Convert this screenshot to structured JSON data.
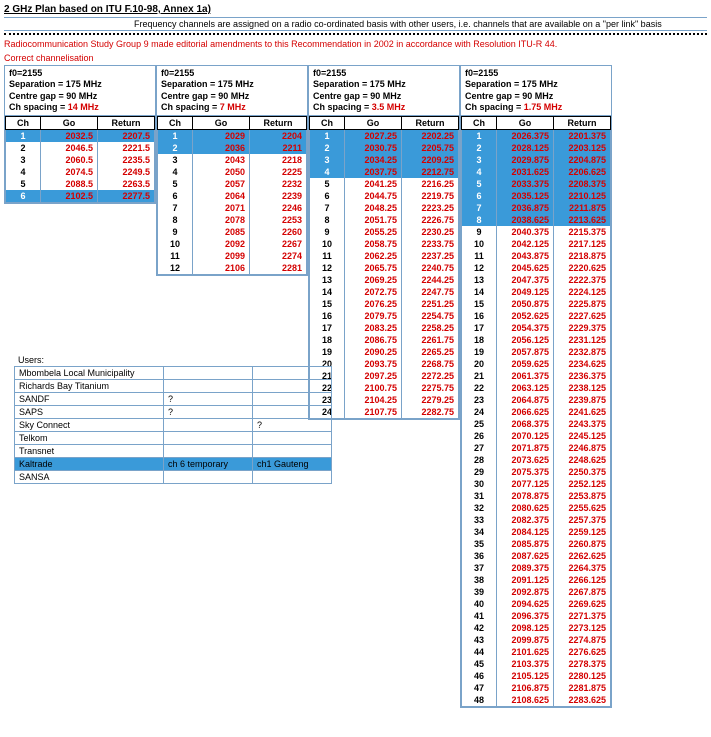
{
  "title": "2 GHz Plan based on ITU F.10-98, Annex 1a)",
  "subtitle": "Frequency channels are assigned on a radio co-ordinated basis with other users, i.e. channels that are available on a \"per link\" basis",
  "red_note": "Radiocommunication Study Group 9 made editorial amendments to this Recommendation in 2002 in accordance with Resolution ITU-R 44.",
  "correct_label": "Correct channelisation",
  "header": {
    "f0": "f0=2155",
    "sep": "Separation = 175 MHz",
    "gap": "Centre gap =  90 MHz",
    "spacing_prefix": "Ch spacing = "
  },
  "th": {
    "ch": "Ch",
    "go": "Go",
    "ret": "Return"
  },
  "cols": [
    {
      "spacing": "14 MHz",
      "highlight": [
        1,
        6
      ],
      "rows": [
        [
          1,
          "2032.5",
          "2207.5"
        ],
        [
          2,
          "2046.5",
          "2221.5"
        ],
        [
          3,
          "2060.5",
          "2235.5"
        ],
        [
          4,
          "2074.5",
          "2249.5"
        ],
        [
          5,
          "2088.5",
          "2263.5"
        ],
        [
          6,
          "2102.5",
          "2277.5"
        ]
      ]
    },
    {
      "spacing": "7 MHz",
      "highlight": [
        1,
        2
      ],
      "rows": [
        [
          1,
          "2029",
          "2204"
        ],
        [
          2,
          "2036",
          "2211"
        ],
        [
          3,
          "2043",
          "2218"
        ],
        [
          4,
          "2050",
          "2225"
        ],
        [
          5,
          "2057",
          "2232"
        ],
        [
          6,
          "2064",
          "2239"
        ],
        [
          7,
          "2071",
          "2246"
        ],
        [
          8,
          "2078",
          "2253"
        ],
        [
          9,
          "2085",
          "2260"
        ],
        [
          10,
          "2092",
          "2267"
        ],
        [
          11,
          "2099",
          "2274"
        ],
        [
          12,
          "2106",
          "2281"
        ]
      ]
    },
    {
      "spacing": "3.5 MHz",
      "highlight": [
        1,
        2,
        3,
        4
      ],
      "rows": [
        [
          1,
          "2027.25",
          "2202.25"
        ],
        [
          2,
          "2030.75",
          "2205.75"
        ],
        [
          3,
          "2034.25",
          "2209.25"
        ],
        [
          4,
          "2037.75",
          "2212.75"
        ],
        [
          5,
          "2041.25",
          "2216.25"
        ],
        [
          6,
          "2044.75",
          "2219.75"
        ],
        [
          7,
          "2048.25",
          "2223.25"
        ],
        [
          8,
          "2051.75",
          "2226.75"
        ],
        [
          9,
          "2055.25",
          "2230.25"
        ],
        [
          10,
          "2058.75",
          "2233.75"
        ],
        [
          11,
          "2062.25",
          "2237.25"
        ],
        [
          12,
          "2065.75",
          "2240.75"
        ],
        [
          13,
          "2069.25",
          "2244.25"
        ],
        [
          14,
          "2072.75",
          "2247.75"
        ],
        [
          15,
          "2076.25",
          "2251.25"
        ],
        [
          16,
          "2079.75",
          "2254.75"
        ],
        [
          17,
          "2083.25",
          "2258.25"
        ],
        [
          18,
          "2086.75",
          "2261.75"
        ],
        [
          19,
          "2090.25",
          "2265.25"
        ],
        [
          20,
          "2093.75",
          "2268.75"
        ],
        [
          21,
          "2097.25",
          "2272.25"
        ],
        [
          22,
          "2100.75",
          "2275.75"
        ],
        [
          23,
          "2104.25",
          "2279.25"
        ],
        [
          24,
          "2107.75",
          "2282.75"
        ]
      ]
    },
    {
      "spacing": "1.75 MHz",
      "highlight": [
        1,
        2,
        3,
        4,
        5,
        6,
        7,
        8
      ],
      "rows": [
        [
          1,
          "2026.375",
          "2201.375"
        ],
        [
          2,
          "2028.125",
          "2203.125"
        ],
        [
          3,
          "2029.875",
          "2204.875"
        ],
        [
          4,
          "2031.625",
          "2206.625"
        ],
        [
          5,
          "2033.375",
          "2208.375"
        ],
        [
          6,
          "2035.125",
          "2210.125"
        ],
        [
          7,
          "2036.875",
          "2211.875"
        ],
        [
          8,
          "2038.625",
          "2213.625"
        ],
        [
          9,
          "2040.375",
          "2215.375"
        ],
        [
          10,
          "2042.125",
          "2217.125"
        ],
        [
          11,
          "2043.875",
          "2218.875"
        ],
        [
          12,
          "2045.625",
          "2220.625"
        ],
        [
          13,
          "2047.375",
          "2222.375"
        ],
        [
          14,
          "2049.125",
          "2224.125"
        ],
        [
          15,
          "2050.875",
          "2225.875"
        ],
        [
          16,
          "2052.625",
          "2227.625"
        ],
        [
          17,
          "2054.375",
          "2229.375"
        ],
        [
          18,
          "2056.125",
          "2231.125"
        ],
        [
          19,
          "2057.875",
          "2232.875"
        ],
        [
          20,
          "2059.625",
          "2234.625"
        ],
        [
          21,
          "2061.375",
          "2236.375"
        ],
        [
          22,
          "2063.125",
          "2238.125"
        ],
        [
          23,
          "2064.875",
          "2239.875"
        ],
        [
          24,
          "2066.625",
          "2241.625"
        ],
        [
          25,
          "2068.375",
          "2243.375"
        ],
        [
          26,
          "2070.125",
          "2245.125"
        ],
        [
          27,
          "2071.875",
          "2246.875"
        ],
        [
          28,
          "2073.625",
          "2248.625"
        ],
        [
          29,
          "2075.375",
          "2250.375"
        ],
        [
          30,
          "2077.125",
          "2252.125"
        ],
        [
          31,
          "2078.875",
          "2253.875"
        ],
        [
          32,
          "2080.625",
          "2255.625"
        ],
        [
          33,
          "2082.375",
          "2257.375"
        ],
        [
          34,
          "2084.125",
          "2259.125"
        ],
        [
          35,
          "2085.875",
          "2260.875"
        ],
        [
          36,
          "2087.625",
          "2262.625"
        ],
        [
          37,
          "2089.375",
          "2264.375"
        ],
        [
          38,
          "2091.125",
          "2266.125"
        ],
        [
          39,
          "2092.875",
          "2267.875"
        ],
        [
          40,
          "2094.625",
          "2269.625"
        ],
        [
          41,
          "2096.375",
          "2271.375"
        ],
        [
          42,
          "2098.125",
          "2273.125"
        ],
        [
          43,
          "2099.875",
          "2274.875"
        ],
        [
          44,
          "2101.625",
          "2276.625"
        ],
        [
          45,
          "2103.375",
          "2278.375"
        ],
        [
          46,
          "2105.125",
          "2280.125"
        ],
        [
          47,
          "2106.875",
          "2281.875"
        ],
        [
          48,
          "2108.625",
          "2283.625"
        ]
      ]
    }
  ],
  "users": {
    "label": "Users:",
    "rows": [
      {
        "c": [
          "Mbombela Local Municipality",
          "",
          ""
        ]
      },
      {
        "c": [
          "Richards Bay Titanium",
          "",
          ""
        ]
      },
      {
        "c": [
          "SANDF",
          "?",
          ""
        ]
      },
      {
        "c": [
          "SAPS",
          "?",
          ""
        ]
      },
      {
        "c": [
          "Sky Connect",
          "",
          "?"
        ]
      },
      {
        "c": [
          "Telkom",
          "",
          ""
        ]
      },
      {
        "c": [
          "Transnet",
          "",
          ""
        ]
      },
      {
        "c": [
          "Kaltrade",
          "ch 6 temporary",
          "ch1 Gauteng"
        ],
        "hl": true
      },
      {
        "c": [
          "SANSA",
          "",
          ""
        ]
      }
    ]
  }
}
